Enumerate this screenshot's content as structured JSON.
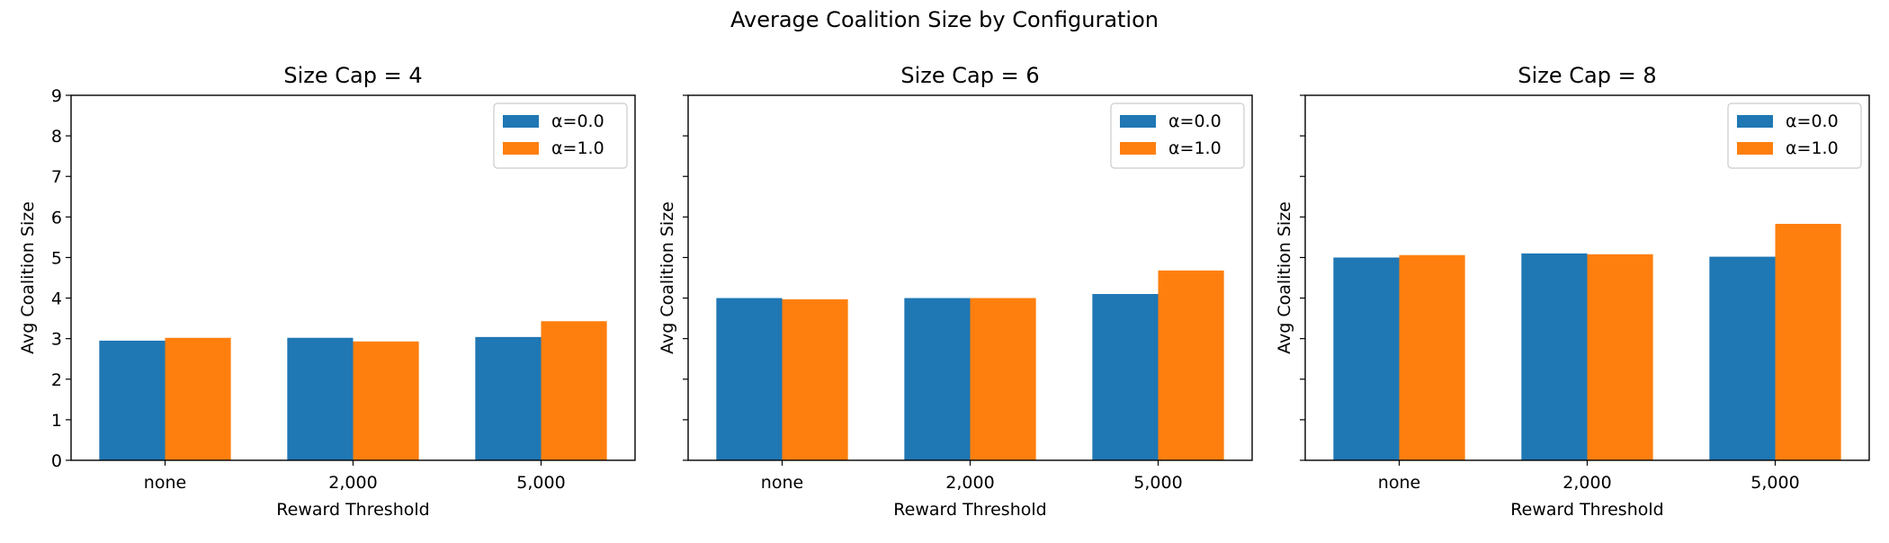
{
  "figure": {
    "suptitle": "Average Coalition Size by Configuration"
  },
  "chart_data": [
    {
      "type": "bar",
      "title": "Size Cap = 4",
      "xlabel": "Reward Threshold",
      "ylabel": "Avg Coalition Size",
      "categories": [
        "none",
        "2,000",
        "5,000"
      ],
      "ylim": [
        0,
        9
      ],
      "yticks": [
        "0",
        "1",
        "2",
        "3",
        "4",
        "5",
        "6",
        "7",
        "8",
        "9"
      ],
      "show_ytick_labels": true,
      "legend_position": "top-right",
      "grid": false,
      "series": [
        {
          "name": "α=0.0",
          "color": "#1f77b4",
          "values": [
            2.95,
            3.02,
            3.04
          ]
        },
        {
          "name": "α=1.0",
          "color": "#ff7f0e",
          "values": [
            3.02,
            2.93,
            3.43
          ]
        }
      ]
    },
    {
      "type": "bar",
      "title": "Size Cap = 6",
      "xlabel": "Reward Threshold",
      "ylabel": "Avg Coalition Size",
      "categories": [
        "none",
        "2,000",
        "5,000"
      ],
      "ylim": [
        0,
        9
      ],
      "yticks": [
        "0",
        "1",
        "2",
        "3",
        "4",
        "5",
        "6",
        "7",
        "8",
        "9"
      ],
      "show_ytick_labels": false,
      "legend_position": "top-right",
      "grid": false,
      "series": [
        {
          "name": "α=0.0",
          "color": "#1f77b4",
          "values": [
            4.0,
            4.0,
            4.1
          ]
        },
        {
          "name": "α=1.0",
          "color": "#ff7f0e",
          "values": [
            3.97,
            4.0,
            4.68
          ]
        }
      ]
    },
    {
      "type": "bar",
      "title": "Size Cap = 8",
      "xlabel": "Reward Threshold",
      "ylabel": "Avg Coalition Size",
      "categories": [
        "none",
        "2,000",
        "5,000"
      ],
      "ylim": [
        0,
        9
      ],
      "yticks": [
        "0",
        "1",
        "2",
        "3",
        "4",
        "5",
        "6",
        "7",
        "8",
        "9"
      ],
      "show_ytick_labels": false,
      "legend_position": "top-right",
      "grid": false,
      "series": [
        {
          "name": "α=0.0",
          "color": "#1f77b4",
          "values": [
            5.0,
            5.1,
            5.02
          ]
        },
        {
          "name": "α=1.0",
          "color": "#ff7f0e",
          "values": [
            5.06,
            5.08,
            5.83
          ]
        }
      ]
    }
  ]
}
